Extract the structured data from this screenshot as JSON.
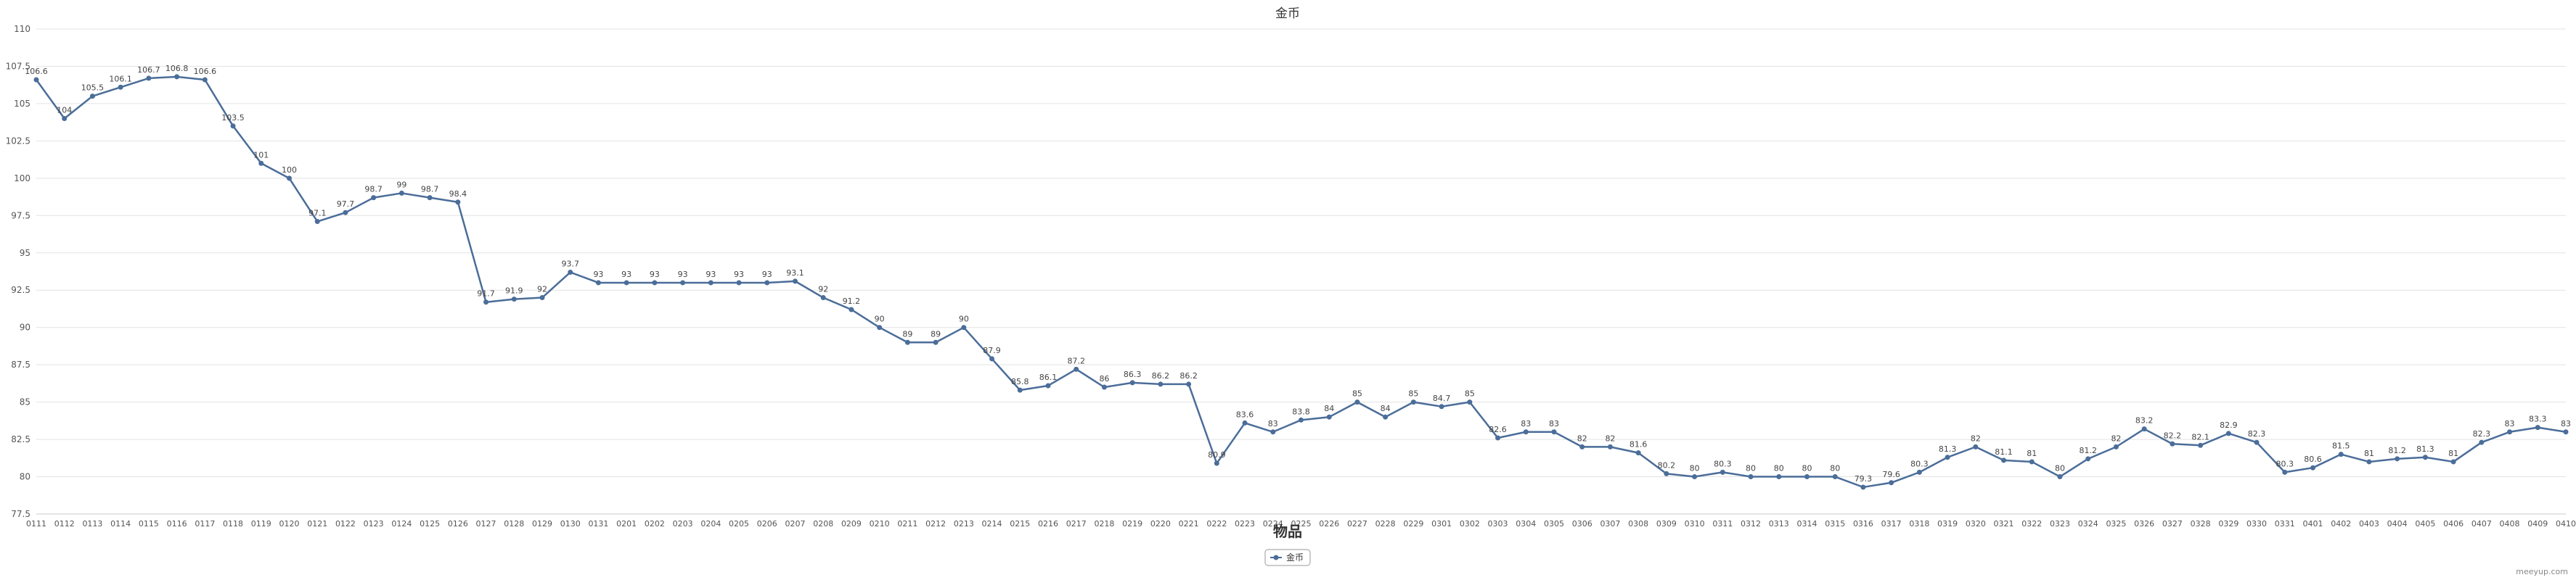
{
  "chart_data": {
    "type": "line",
    "title": "金币",
    "xlabel": "物品",
    "ylabel": "",
    "ylim": [
      77.5,
      110
    ],
    "yticks": [
      77.5,
      80,
      82.5,
      85,
      87.5,
      90,
      92.5,
      95,
      97.5,
      100,
      102.5,
      105,
      107.5,
      110
    ],
    "grid": true,
    "legend_position": "bottom-center",
    "color": "#4b6d99",
    "categories": [
      "0111",
      "0112",
      "0113",
      "0114",
      "0115",
      "0116",
      "0117",
      "0118",
      "0119",
      "0120",
      "0121",
      "0122",
      "0123",
      "0124",
      "0125",
      "0126",
      "0127",
      "0128",
      "0129",
      "0130",
      "0131",
      "0201",
      "0202",
      "0203",
      "0204",
      "0205",
      "0206",
      "0207",
      "0208",
      "0209",
      "0210",
      "0211",
      "0212",
      "0213",
      "0214",
      "0215",
      "0216",
      "0217",
      "0218",
      "0219",
      "0220",
      "0221",
      "0222",
      "0223",
      "0224",
      "0225",
      "0226",
      "0227",
      "0228",
      "0229",
      "0301",
      "0302",
      "0303",
      "0304",
      "0305",
      "0306",
      "0307",
      "0308",
      "0309",
      "0310",
      "0311",
      "0312",
      "0313",
      "0314",
      "0315",
      "0316",
      "0317",
      "0318",
      "0319",
      "0320",
      "0321",
      "0322",
      "0323",
      "0324",
      "0325",
      "0326",
      "0327",
      "0328",
      "0329",
      "0330",
      "0331",
      "0401",
      "0402",
      "0403",
      "0404",
      "0405",
      "0406",
      "0407",
      "0408",
      "0409",
      "0410"
    ],
    "series": [
      {
        "name": "金币",
        "values": [
          106.6,
          104,
          105.5,
          106.1,
          106.7,
          106.8,
          106.6,
          103.5,
          101,
          100,
          97.1,
          97.7,
          98.7,
          99,
          98.7,
          98.4,
          91.7,
          91.9,
          92,
          93.7,
          93,
          93,
          93,
          93,
          93,
          93,
          93,
          93.1,
          92,
          91.2,
          90,
          89,
          89,
          90,
          87.9,
          85.8,
          86.1,
          87.2,
          86,
          86.3,
          86.2,
          86.2,
          80.9,
          83.6,
          83,
          83.8,
          84,
          85,
          84,
          85,
          84.7,
          85,
          82.6,
          83,
          83,
          82,
          82,
          81.6,
          80.2,
          80,
          80.3,
          80,
          80,
          80,
          80,
          79.3,
          79.6,
          80.3,
          81.3,
          82,
          81.1,
          81,
          80,
          81.2,
          82,
          83.2,
          82.2,
          82.1,
          82.9,
          82.3,
          80.3,
          80.6,
          81.5,
          81,
          81.2,
          81.3,
          81,
          82.3,
          83,
          83.3,
          83
        ]
      }
    ]
  },
  "watermark": "meeyup.com"
}
